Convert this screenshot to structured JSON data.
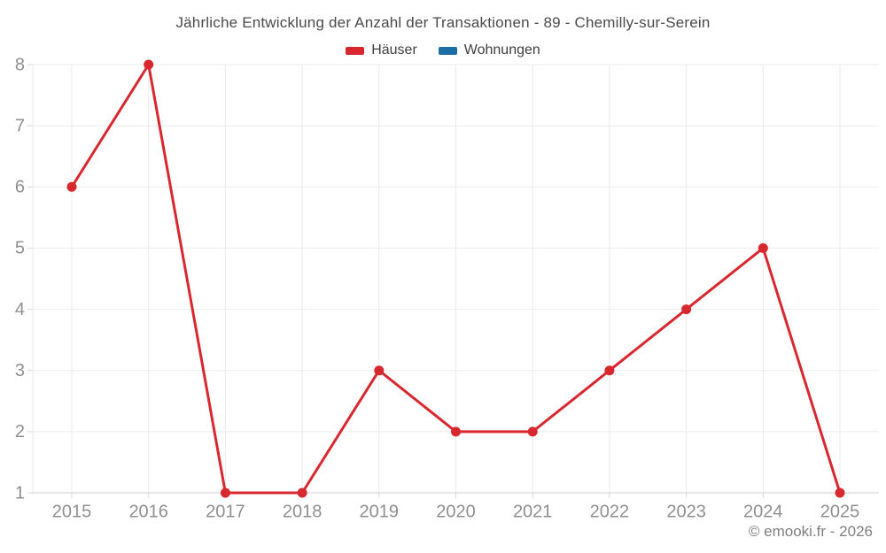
{
  "chart_data": {
    "type": "line",
    "title": "Jährliche Entwicklung der Anzahl der Transaktionen - 89 - Chemilly-sur-Serein",
    "x": [
      2015,
      2016,
      2017,
      2018,
      2019,
      2020,
      2021,
      2022,
      2023,
      2024,
      2025
    ],
    "xlabel": "",
    "ylabel": "",
    "ylim": [
      1,
      8
    ],
    "yticks": [
      1,
      2,
      3,
      4,
      5,
      6,
      7,
      8
    ],
    "grid": true,
    "legend_position": "top",
    "series": [
      {
        "name": "Häuser",
        "color": "#d8282f",
        "values": [
          6,
          8,
          1,
          1,
          3,
          2,
          2,
          3,
          4,
          5,
          1
        ]
      },
      {
        "name": "Wohnungen",
        "color": "#1a6ea4",
        "values": []
      }
    ]
  },
  "footer": {
    "credit": "© emooki.fr - 2026"
  }
}
